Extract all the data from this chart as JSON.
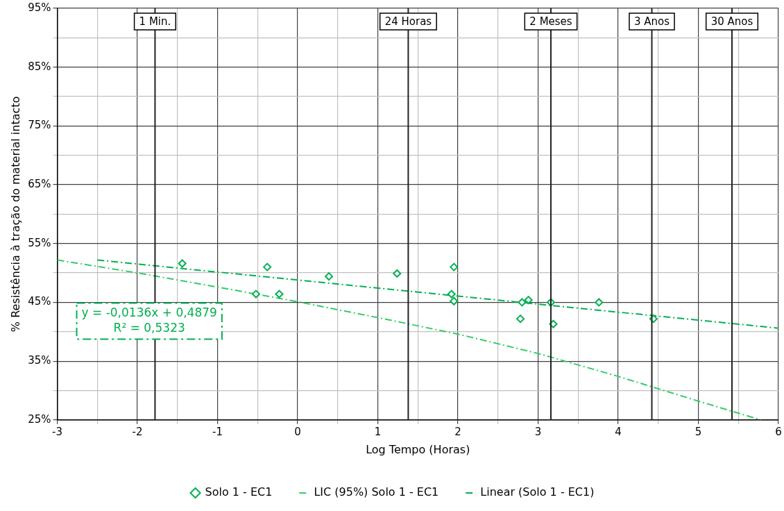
{
  "chart_data": {
    "type": "scatter",
    "xlabel": "Log Tempo (Horas)",
    "ylabel": "% Resistência à tração do material intacto",
    "xlim": [
      -3,
      6
    ],
    "xticks": [
      -3,
      {
        "value": -2.5,
        "label": null
      },
      -2,
      {
        "value": -1.5,
        "label": null
      },
      -1,
      {
        "value": -0.5,
        "label": null
      },
      0,
      {
        "value": 0.5,
        "label": null
      },
      1,
      {
        "value": 1.5,
        "label": null
      },
      2,
      {
        "value": 2.5,
        "label": null
      },
      3,
      {
        "value": 3.5,
        "label": null
      },
      4,
      {
        "value": 4.5,
        "label": null
      },
      5,
      {
        "value": 5.5,
        "label": null
      },
      6
    ],
    "ylim": [
      25,
      95
    ],
    "yticks": [
      {
        "value": 25,
        "label": "25%"
      },
      {
        "value": 30,
        "label": null
      },
      {
        "value": 35,
        "label": "35%"
      },
      {
        "value": 40,
        "label": null
      },
      {
        "value": 45,
        "label": "45%"
      },
      {
        "value": 50,
        "label": null
      },
      {
        "value": 55,
        "label": "55%"
      },
      {
        "value": 60,
        "label": null
      },
      {
        "value": 65,
        "label": "65%"
      },
      {
        "value": 70,
        "label": null
      },
      {
        "value": 75,
        "label": "75%"
      },
      {
        "value": 80,
        "label": null
      },
      {
        "value": 85,
        "label": "85%"
      },
      {
        "value": 90,
        "label": null
      },
      {
        "value": 95,
        "label": "95%"
      }
    ],
    "grid": true,
    "legend": "bottom",
    "series": [
      {
        "name": "Solo 1 - EC1",
        "type": "scatter",
        "marker": "diamond",
        "color": "#00b050",
        "x": [
          -1.44,
          -0.52,
          -0.38,
          -0.23,
          0.39,
          1.24,
          1.92,
          1.95,
          1.95,
          2.78,
          2.8,
          2.88,
          3.16,
          3.19,
          3.76,
          4.44
        ],
        "values": [
          51.6,
          46.4,
          51,
          46.4,
          49.4,
          49.9,
          46.4,
          51,
          45.2,
          42.2,
          45,
          45.4,
          45,
          41.3,
          45,
          42.2
        ]
      },
      {
        "name": "LIC (95%) Solo 1 - EC1",
        "type": "line",
        "line_style": "dashed",
        "marker": "none",
        "color": "#33cc66",
        "x": [
          -3,
          -2,
          -1,
          0,
          1,
          2,
          3,
          4,
          5,
          5.78
        ],
        "values": [
          52.2,
          50,
          47.6,
          45.1,
          42.4,
          39.6,
          36.3,
          32.4,
          28.2,
          25
        ]
      },
      {
        "name": "Linear (Solo 1 - EC1)",
        "type": "line",
        "line_style": "dashed",
        "marker": "none",
        "color": "#00b050",
        "x": [
          -2.5,
          6
        ],
        "values": [
          52.2,
          40.6
        ]
      }
    ],
    "ref_lines": [
      {
        "axis": "x",
        "value": -1.78,
        "label": "1 Min."
      },
      {
        "axis": "x",
        "value": 1.38,
        "label": "24 Horas"
      },
      {
        "axis": "x",
        "value": 3.16,
        "label": "2 Meses"
      },
      {
        "axis": "x",
        "value": 4.42,
        "label": "3 Anos"
      },
      {
        "axis": "x",
        "value": 5.42,
        "label": "30 Anos"
      }
    ],
    "annotations": [
      "y = -0,0136x + 0,4879",
      "R² = 0,5323"
    ]
  }
}
